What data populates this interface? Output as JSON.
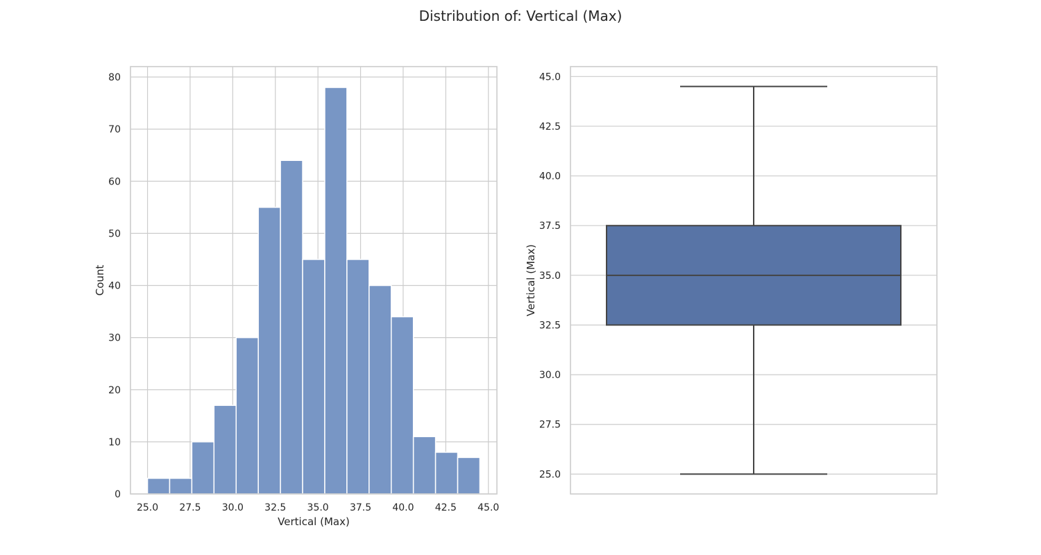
{
  "suptitle": "Distribution of: Vertical (Max)",
  "colors": {
    "hist_bar": "#7896c5",
    "box_fill": "#5874a6",
    "line": "#444444",
    "grid": "#cccccc",
    "axes_frame": "#cccccc",
    "text": "#262626"
  },
  "chart_data": [
    {
      "type": "bar",
      "subtype": "histogram",
      "title": "",
      "xlabel": "Vertical (Max)",
      "ylabel": "Count",
      "xlim": [
        24.0,
        45.5
      ],
      "ylim": [
        0,
        82
      ],
      "xticks": [
        25.0,
        27.5,
        30.0,
        32.5,
        35.0,
        37.5,
        40.0,
        42.5,
        45.0
      ],
      "xtick_labels": [
        "25.0",
        "27.5",
        "30.0",
        "32.5",
        "35.0",
        "37.5",
        "40.0",
        "42.5",
        "45.0"
      ],
      "yticks": [
        0,
        10,
        20,
        30,
        40,
        50,
        60,
        70,
        80
      ],
      "ytick_labels": [
        "0",
        "10",
        "20",
        "30",
        "40",
        "50",
        "60",
        "70",
        "80"
      ],
      "grid": true,
      "bin_edges": [
        25.0,
        26.3,
        27.6,
        28.9,
        30.2,
        31.5,
        32.8,
        34.1,
        35.4,
        36.7,
        38.0,
        39.3,
        40.6,
        41.9,
        43.2,
        44.5
      ],
      "counts": [
        3,
        3,
        10,
        17,
        30,
        55,
        64,
        45,
        78,
        45,
        40,
        34,
        11,
        8,
        7
      ]
    },
    {
      "type": "box",
      "title": "",
      "xlabel": "",
      "ylabel": "Vertical (Max)",
      "ylim": [
        24.0,
        45.5
      ],
      "yticks": [
        25.0,
        27.5,
        30.0,
        32.5,
        35.0,
        37.5,
        40.0,
        42.5,
        45.0
      ],
      "ytick_labels": [
        "25.0",
        "27.5",
        "30.0",
        "32.5",
        "35.0",
        "37.5",
        "40.0",
        "42.5",
        "45.0"
      ],
      "grid": true,
      "whisker_low": 25.0,
      "q1": 32.5,
      "median": 35.0,
      "q3": 37.5,
      "whisker_high": 44.5
    }
  ]
}
